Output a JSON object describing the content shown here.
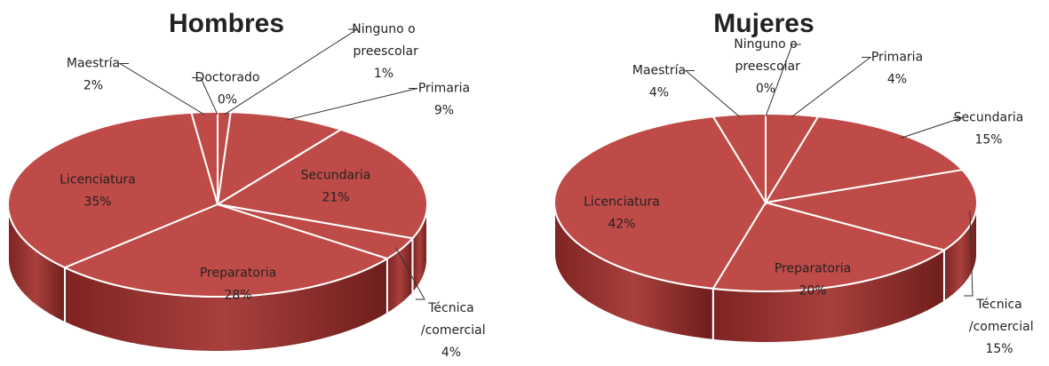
{
  "chart_data": [
    {
      "type": "pie",
      "title": "Hombres",
      "categories": [
        "Ninguno o preescolar",
        "Primaria",
        "Secundaria",
        "Técnica /comercial",
        "Preparatoria",
        "Licenciatura",
        "Maestría",
        "Doctorado"
      ],
      "values": [
        1,
        9,
        21,
        4,
        28,
        35,
        2,
        0
      ],
      "value_labels": [
        "1%",
        "9%",
        "21%",
        "4%",
        "28%",
        "35%",
        "2%",
        "0%"
      ],
      "color": "#bf4b48"
    },
    {
      "type": "pie",
      "title": "Mujeres",
      "categories": [
        "Ninguno o preescolar",
        "Primaria",
        "Secundaria",
        "Técnica /comercial",
        "Preparatoria",
        "Licenciatura",
        "Maestría"
      ],
      "values": [
        0,
        4,
        15,
        15,
        20,
        42,
        4
      ],
      "value_labels": [
        "0%",
        "4%",
        "15%",
        "15%",
        "20%",
        "42%",
        "4%"
      ],
      "color": "#bf4b48"
    }
  ]
}
